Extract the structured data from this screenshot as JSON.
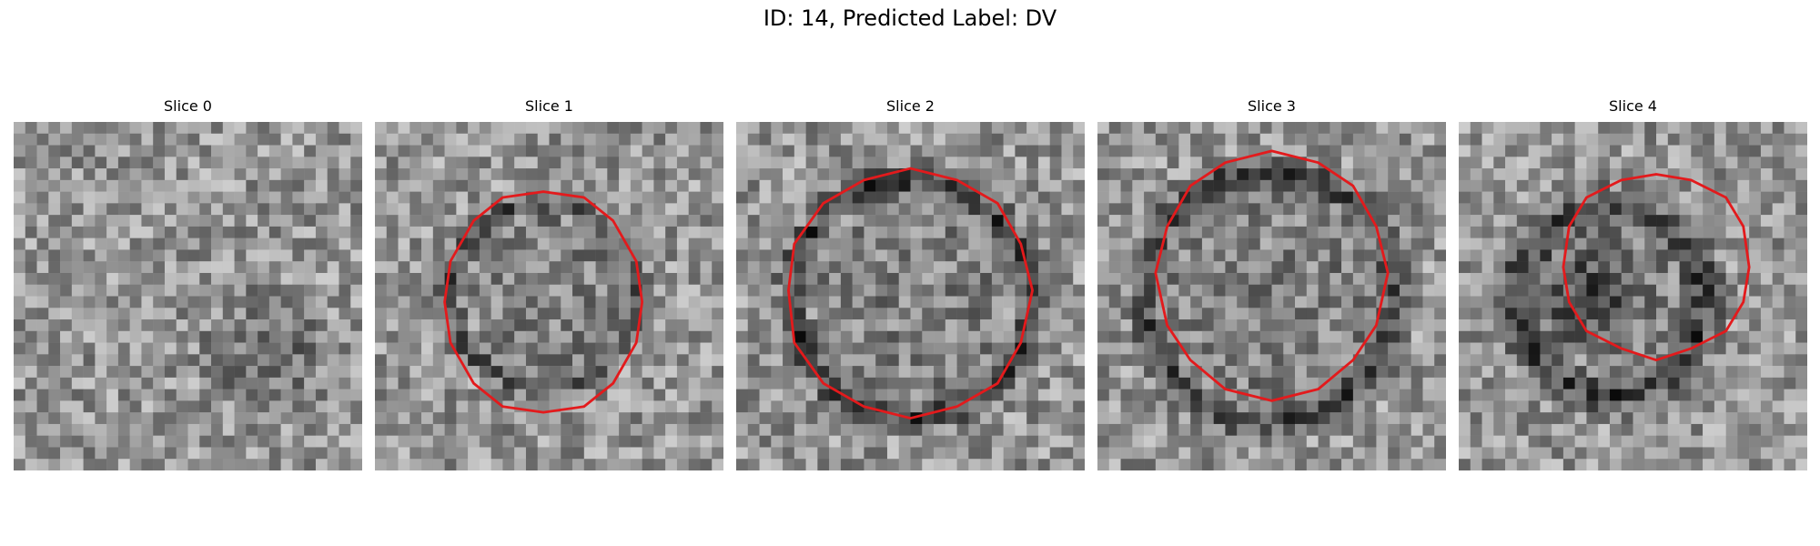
{
  "figure": {
    "title": "ID: 14, Predicted Label: DV"
  },
  "panels": [
    {
      "title": "Slice 0",
      "has_contour": false
    },
    {
      "title": "Slice 1",
      "has_contour": true
    },
    {
      "title": "Slice 2",
      "has_contour": true
    },
    {
      "title": "Slice 3",
      "has_contour": true
    },
    {
      "title": "Slice 4",
      "has_contour": true
    }
  ],
  "colors": {
    "contour": "#e31a1c"
  }
}
